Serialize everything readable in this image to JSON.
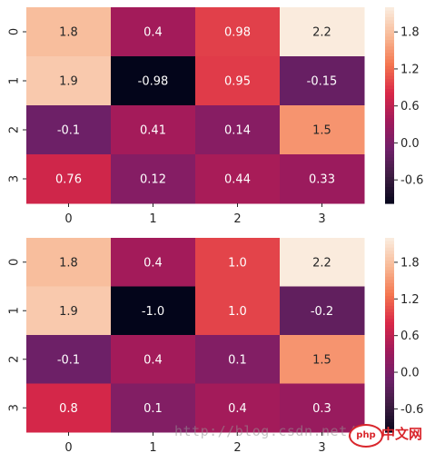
{
  "chart_data": [
    {
      "type": "heatmap",
      "x_ticks": [
        "0",
        "1",
        "2",
        "3"
      ],
      "y_ticks": [
        "0",
        "1",
        "2",
        "3"
      ],
      "values": [
        [
          1.8,
          0.4,
          0.98,
          2.2
        ],
        [
          1.9,
          -0.98,
          0.95,
          -0.15
        ],
        [
          -0.1,
          0.41,
          0.14,
          1.5
        ],
        [
          0.76,
          0.12,
          0.44,
          0.33
        ]
      ],
      "annotations": [
        [
          "1.8",
          "0.4",
          "0.98",
          "2.2"
        ],
        [
          "1.9",
          "-0.98",
          "0.95",
          "-0.15"
        ],
        [
          "-0.1",
          "0.41",
          "0.14",
          "1.5"
        ],
        [
          "0.76",
          "0.12",
          "0.44",
          "0.33"
        ]
      ],
      "vmin": -0.98,
      "vmax": 2.2,
      "colorbar_ticks": [
        "1.8",
        "1.2",
        "0.6",
        "0.0",
        "-0.6"
      ],
      "colorbar_tick_values": [
        1.8,
        1.2,
        0.6,
        0.0,
        -0.6
      ]
    },
    {
      "type": "heatmap",
      "x_ticks": [
        "0",
        "1",
        "2",
        "3"
      ],
      "y_ticks": [
        "0",
        "1",
        "2",
        "3"
      ],
      "values": [
        [
          1.8,
          0.4,
          1.0,
          2.2
        ],
        [
          1.9,
          -1.0,
          1.0,
          -0.2
        ],
        [
          -0.1,
          0.4,
          0.1,
          1.5
        ],
        [
          0.8,
          0.1,
          0.4,
          0.3
        ]
      ],
      "annotations": [
        [
          "1.8",
          "0.4",
          "1.0",
          "2.2"
        ],
        [
          "1.9",
          "-1.0",
          "1.0",
          "-0.2"
        ],
        [
          "-0.1",
          "0.4",
          "0.1",
          "1.5"
        ],
        [
          "0.8",
          "0.1",
          "0.4",
          "0.3"
        ]
      ],
      "vmin": -0.98,
      "vmax": 2.2,
      "colorbar_ticks": [
        "1.8",
        "1.2",
        "0.6",
        "0.0",
        "-0.6"
      ],
      "colorbar_tick_values": [
        1.8,
        1.2,
        0.6,
        0.0,
        -0.6
      ]
    }
  ],
  "colormap": [
    "#03051a",
    "#3b1c40",
    "#70206a",
    "#a11a5b",
    "#d92847",
    "#f4754f",
    "#f8b894",
    "#faebdd"
  ],
  "watermark": {
    "text": "http://blog.csdn.net/",
    "logo": "php",
    "suffix": "中文网"
  }
}
